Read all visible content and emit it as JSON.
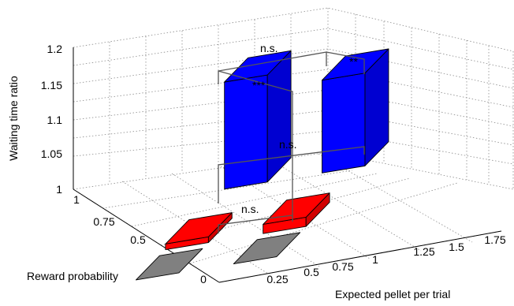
{
  "chart_data": {
    "type": "bar3d",
    "title": "",
    "xlabel": "Expected pellet per trial",
    "ylabel": "Reward probability",
    "zlabel": "Waiting time ratio",
    "x_ticks": [
      "0.25",
      "0.5",
      "0.75",
      "1",
      "1.25",
      "1.5",
      "1.75"
    ],
    "y_ticks": [
      "0",
      "0.25",
      "0.5",
      "0.75",
      "1"
    ],
    "z_ticks": [
      "1",
      "1.05",
      "1.1",
      "1.15",
      "1.2"
    ],
    "zlim": [
      1.0,
      1.2
    ],
    "grid": true,
    "colors": {
      "high": "#0000ff",
      "mid": "#ff0000",
      "low": "#808080"
    },
    "bars": [
      {
        "x": 0.5,
        "y": 1.0,
        "value": 1.15,
        "color": "#0000ff"
      },
      {
        "x": 0.5,
        "y": 0.5,
        "value": 1.008,
        "color": "#ff0000"
      },
      {
        "x": 0.5,
        "y": 0.25,
        "value": 1.0,
        "color": "#808080"
      },
      {
        "x": 1.0,
        "y": 1.0,
        "value": 1.13,
        "color": "#0000ff"
      },
      {
        "x": 1.0,
        "y": 0.5,
        "value": 1.013,
        "color": "#ff0000"
      },
      {
        "x": 1.0,
        "y": 0.25,
        "value": 1.0,
        "color": "#808080"
      }
    ],
    "annotations": [
      "n.s.",
      "**",
      "***",
      "n.s.",
      "n.s."
    ]
  }
}
